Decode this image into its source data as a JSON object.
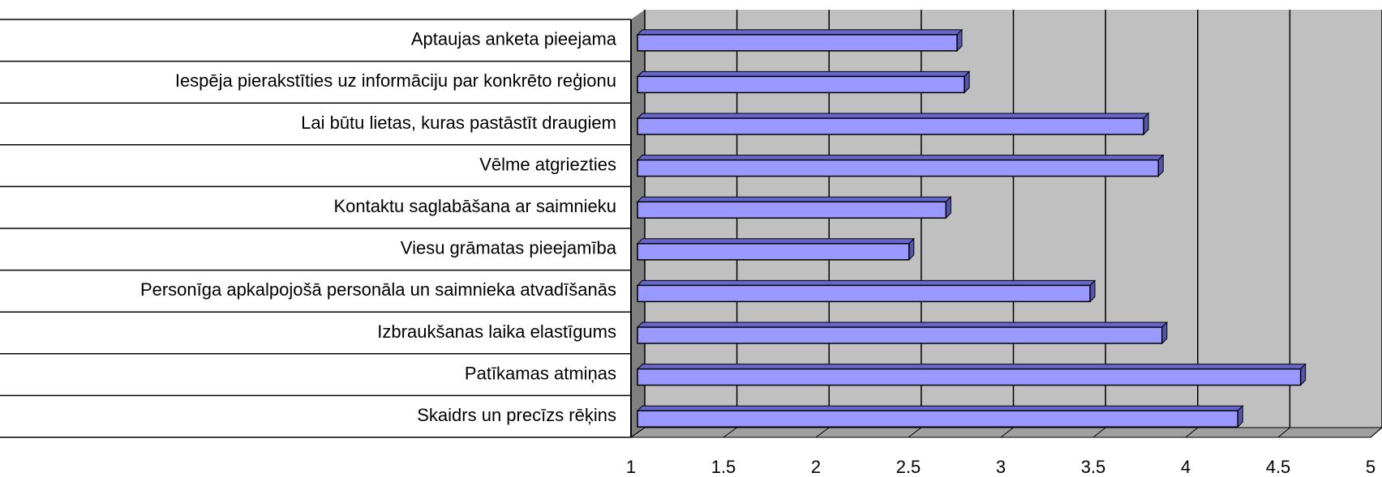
{
  "chart_data": {
    "type": "bar",
    "orientation": "horizontal",
    "categories": [
      "Aptaujas anketa pieejama",
      "Iespēja pierakstīties uz informāciju par konkrēto reģionu",
      "Lai būtu lietas, kuras pastāstīt draugiem",
      "Vēlme atgriezties",
      "Kontaktu saglabāšana ar saimnieku",
      "Viesu grāmatas pieejamība",
      "Personīga apkalpojošā personāla un saimnieka atvadīšanās",
      "Izbraukšanas laika elastīgums",
      "Patīkamas atmiņas",
      "Skaidrs un precīzs rēķins"
    ],
    "values": [
      2.73,
      2.77,
      3.74,
      3.82,
      2.67,
      2.47,
      3.45,
      3.84,
      4.59,
      4.25
    ],
    "color": "#9999ff",
    "xlim": [
      1,
      5
    ],
    "xticks": [
      1,
      1.5,
      2,
      2.5,
      3,
      3.5,
      4,
      4.5,
      5
    ],
    "grid": true
  }
}
